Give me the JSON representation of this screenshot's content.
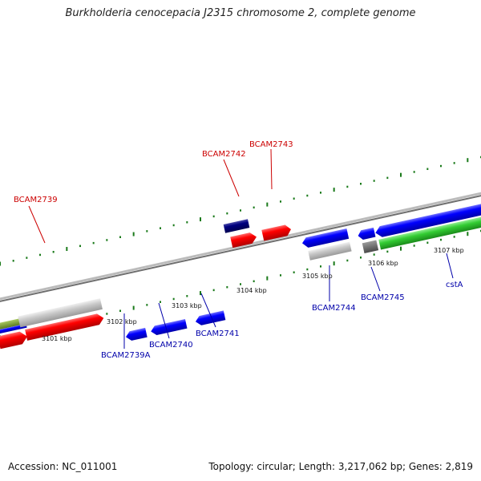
{
  "header": {
    "title": "Burkholderia cenocepacia J2315 chromosome 2, complete genome"
  },
  "footer": {
    "accession": "Accession: NC_011001",
    "topology": "Topology: circular; Length: 3,217,062 bp; Genes: 2,819"
  },
  "colors": {
    "forward_gene": "#ff0000",
    "reverse_gene": "#0000ff",
    "selected_gene": "#000080",
    "pseudo_gene": "#c0c0c0",
    "rna_gene": "#33cc33",
    "backbone": "#8c8c8c",
    "ticks": "#1a7a1a",
    "label_forward": "#cc0000",
    "label_reverse": "#0000aa"
  },
  "scale": {
    "unit": "kbp",
    "ticks": [
      {
        "text": "3101 kbp"
      },
      {
        "text": "3102 kbp"
      },
      {
        "text": "3103 kbp"
      },
      {
        "text": "3104 kbp"
      },
      {
        "text": "3105 kbp"
      },
      {
        "text": "3106 kbp"
      },
      {
        "text": "3107 kbp"
      }
    ]
  },
  "gene_labels": [
    {
      "text": "BCAM2739",
      "strand": "forward"
    },
    {
      "text": "BCAM2742",
      "strand": "forward"
    },
    {
      "text": "BCAM2743",
      "strand": "forward"
    },
    {
      "text": "BCAM2739A",
      "strand": "reverse"
    },
    {
      "text": "BCAM2740",
      "strand": "reverse"
    },
    {
      "text": "BCAM2741",
      "strand": "reverse"
    },
    {
      "text": "BCAM2744",
      "strand": "reverse"
    },
    {
      "text": "BCAM2745",
      "strand": "reverse"
    },
    {
      "text": "cstA",
      "strand": "reverse"
    }
  ]
}
